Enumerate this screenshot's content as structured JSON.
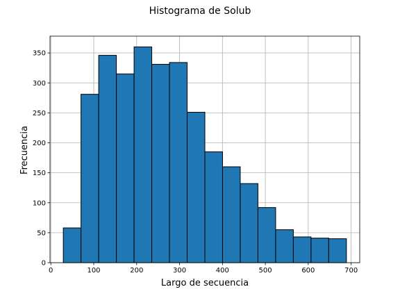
{
  "chart_data": {
    "type": "bar",
    "title": "Histograma de Solub",
    "xlabel": "Largo de secuencia",
    "ylabel": "Frecuencia",
    "bin_edges": [
      29,
      70.25,
      111.5,
      152.75,
      194,
      235.25,
      276.5,
      317.75,
      359,
      400.25,
      441.5,
      482.75,
      524,
      565.25,
      606.5,
      647.75,
      689
    ],
    "values": [
      58,
      281,
      346,
      315,
      360,
      331,
      334,
      251,
      185,
      160,
      132,
      92,
      55,
      43,
      41,
      40
    ],
    "xlim": [
      -2,
      720
    ],
    "ylim": [
      0,
      378
    ],
    "xticks": [
      0,
      100,
      200,
      300,
      400,
      500,
      600,
      700
    ],
    "yticks": [
      0,
      50,
      100,
      150,
      200,
      250,
      300,
      350
    ],
    "grid": true,
    "colors": {
      "bar": "#1f77b4",
      "edge": "#000000",
      "grid": "#b0b0b0"
    }
  }
}
